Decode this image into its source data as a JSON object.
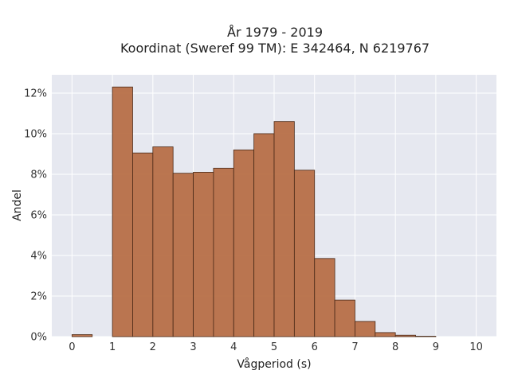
{
  "chart_data": {
    "type": "bar",
    "title": "År 1979 - 2019",
    "subtitle": "Koordinat (Sweref 99 TM): E 342464, N 6219767",
    "xlabel": "Vågperiod (s)",
    "ylabel": "Andel",
    "bin_width": 0.5,
    "bins": [
      {
        "x0": 0.0,
        "value": 0.1
      },
      {
        "x0": 0.5,
        "value": 0.0
      },
      {
        "x0": 1.0,
        "value": 12.3
      },
      {
        "x0": 1.5,
        "value": 9.05
      },
      {
        "x0": 2.0,
        "value": 9.35
      },
      {
        "x0": 2.5,
        "value": 8.05
      },
      {
        "x0": 3.0,
        "value": 8.1
      },
      {
        "x0": 3.5,
        "value": 8.3
      },
      {
        "x0": 4.0,
        "value": 9.2
      },
      {
        "x0": 4.5,
        "value": 10.0
      },
      {
        "x0": 5.0,
        "value": 10.6
      },
      {
        "x0": 5.5,
        "value": 8.2
      },
      {
        "x0": 6.0,
        "value": 3.85
      },
      {
        "x0": 6.5,
        "value": 1.8
      },
      {
        "x0": 7.0,
        "value": 0.75
      },
      {
        "x0": 7.5,
        "value": 0.2
      },
      {
        "x0": 8.0,
        "value": 0.07
      },
      {
        "x0": 8.5,
        "value": 0.02
      }
    ],
    "xlim": [
      -0.5,
      10.5
    ],
    "ylim": [
      0,
      12.9
    ],
    "x_ticks": [
      0,
      1,
      2,
      3,
      4,
      5,
      6,
      7,
      8,
      9,
      10
    ],
    "x_tick_labels": [
      "0",
      "1",
      "2",
      "3",
      "4",
      "5",
      "6",
      "7",
      "8",
      "9",
      "10"
    ],
    "y_ticks": [
      0,
      2,
      4,
      6,
      8,
      10,
      12
    ],
    "y_tick_labels": [
      "0%",
      "2%",
      "4%",
      "6%",
      "8%",
      "10%",
      "12%"
    ],
    "grid": true,
    "colors": {
      "bar_fill": "#b5683e",
      "bar_stroke": "#4a2a18",
      "plot_bg": "#e6e8f0",
      "grid": "#ffffff"
    }
  }
}
